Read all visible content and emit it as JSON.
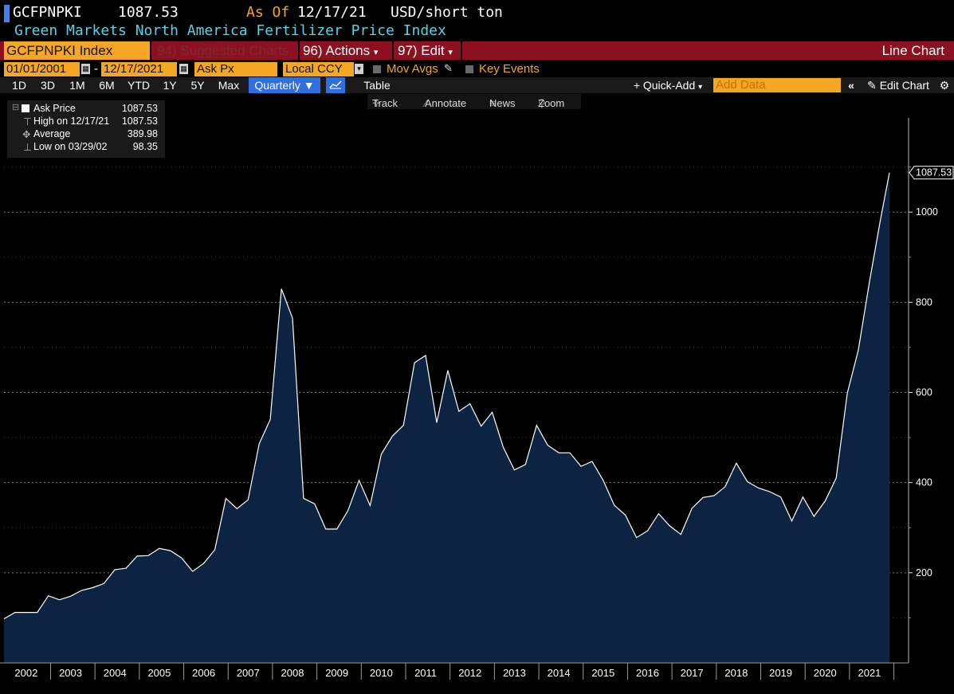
{
  "header": {
    "ticker": "GCFPNPKI",
    "last_value": "1087.53",
    "as_of_label": "As Of",
    "as_of_date": "12/17/21",
    "unit": "USD/short ton",
    "description": "Green Markets North America Fertilizer Price Index"
  },
  "toolbar": {
    "security": "GCFPNPKI Index",
    "suggested": "94) Suggested Charts",
    "actions": "96) Actions",
    "edit": "97) Edit",
    "chart_type": "Line Chart",
    "start_date": "01/01/2001",
    "end_date": "12/17/2021",
    "field": "Ask Px",
    "currency": "Local CCY",
    "mov_avgs": "Mov Avgs",
    "key_events": "Key Events",
    "ranges": [
      "1D",
      "3D",
      "1M",
      "6M",
      "YTD",
      "1Y",
      "5Y",
      "Max"
    ],
    "frequency": "Quarterly",
    "table": "Table",
    "quick_add": "+ Quick-Add",
    "add_data_placeholder": "Add Data",
    "edit_chart": "Edit Chart"
  },
  "tools": {
    "track": "Track",
    "annotate": "Annotate",
    "news": "News",
    "zoom": "Zoom"
  },
  "legend": {
    "ask_label": "Ask Price",
    "ask_value": "1087.53",
    "high_label": "High on 12/17/21",
    "high_value": "1087.53",
    "avg_label": "Average",
    "avg_value": "389.98",
    "low_label": "Low on 03/29/02",
    "low_value": "98.35"
  },
  "colors": {
    "background": "#000000",
    "area_fill": "#0c2342",
    "line": "#ffffff",
    "accent_orange": "#f5a623",
    "bar_red": "#8c1020",
    "title_cyan": "#5ad1e6"
  },
  "chart_data": {
    "type": "area",
    "title": "",
    "xlabel": "",
    "ylabel": "",
    "x_ticks": [
      "2002",
      "2003",
      "2004",
      "2005",
      "2006",
      "2007",
      "2008",
      "2009",
      "2010",
      "2011",
      "2012",
      "2013",
      "2014",
      "2015",
      "2016",
      "2017",
      "2018",
      "2019",
      "2020",
      "2021"
    ],
    "y_ticks": [
      200,
      400,
      600,
      800,
      1000
    ],
    "ylim": [
      0,
      1170
    ],
    "xlim": [
      2001.95,
      2021.9
    ],
    "grid": "horizontal dashed",
    "last_value_label": "1087.53",
    "x": [
      2001.95,
      2002.2,
      2002.45,
      2002.7,
      2002.95,
      2003.2,
      2003.45,
      2003.7,
      2003.95,
      2004.2,
      2004.45,
      2004.7,
      2004.95,
      2005.2,
      2005.45,
      2005.7,
      2005.95,
      2006.2,
      2006.45,
      2006.7,
      2006.95,
      2007.2,
      2007.45,
      2007.7,
      2007.95,
      2008.2,
      2008.45,
      2008.7,
      2008.95,
      2009.2,
      2009.45,
      2009.7,
      2009.95,
      2010.2,
      2010.45,
      2010.7,
      2010.95,
      2011.2,
      2011.45,
      2011.7,
      2011.95,
      2012.2,
      2012.45,
      2012.7,
      2012.95,
      2013.2,
      2013.45,
      2013.7,
      2013.95,
      2014.2,
      2014.45,
      2014.7,
      2014.95,
      2015.2,
      2015.45,
      2015.7,
      2015.95,
      2016.2,
      2016.45,
      2016.7,
      2016.95,
      2017.2,
      2017.45,
      2017.7,
      2017.95,
      2018.2,
      2018.45,
      2018.7,
      2018.95,
      2019.2,
      2019.45,
      2019.7,
      2019.95,
      2020.2,
      2020.45,
      2020.7,
      2020.95,
      2021.2,
      2021.45,
      2021.7,
      2021.9
    ],
    "values": [
      98,
      112,
      112,
      112,
      149,
      140,
      148,
      161,
      167,
      176,
      207,
      210,
      237,
      238,
      254,
      249,
      233,
      203,
      221,
      251,
      365,
      342,
      362,
      486,
      540,
      830,
      765,
      365,
      353,
      297,
      297,
      338,
      405,
      349,
      463,
      503,
      527,
      666,
      682,
      533,
      649,
      558,
      575,
      525,
      556,
      478,
      428,
      440,
      527,
      483,
      466,
      466,
      436,
      447,
      405,
      350,
      328,
      278,
      293,
      331,
      304,
      285,
      343,
      367,
      371,
      391,
      443,
      402,
      388,
      380,
      368,
      315,
      368,
      325,
      359,
      410,
      598,
      694,
      845,
      985,
      1087.53
    ]
  }
}
